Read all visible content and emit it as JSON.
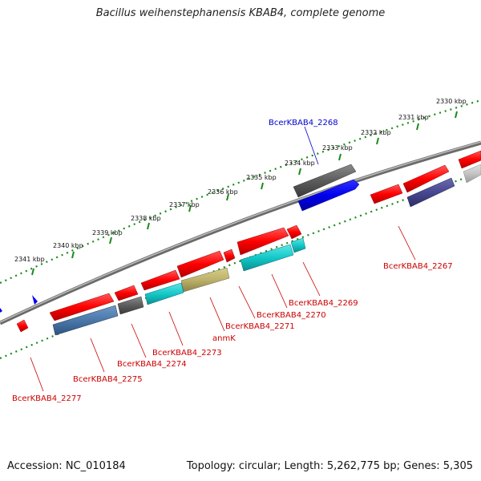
{
  "title": "Bacillus weihenstephanensis KBAB4, complete genome",
  "footer": {
    "accession": "Accession: NC_010184",
    "topology": "Topology: circular; Length: 5,262,775 bp; Genes: 5,305"
  },
  "colors": {
    "genome_line": "#7f7f7f",
    "dotted_scale": "#1a8a1a",
    "label_red": "#cc0000",
    "label_blue": "#0000cc"
  },
  "scale_ticks": [
    {
      "label": "2341 kbp"
    },
    {
      "label": "2340 kbp"
    },
    {
      "label": "2339 kbp"
    },
    {
      "label": "2338 kbp"
    },
    {
      "label": "2337 kbp"
    },
    {
      "label": "2336 kbp"
    },
    {
      "label": "2335 kbp"
    },
    {
      "label": "2334 kbp"
    },
    {
      "label": "2333 kbp"
    },
    {
      "label": "2332 kbp"
    },
    {
      "label": "2331 kbp"
    },
    {
      "label": "2330 kbp"
    }
  ],
  "genes": [
    {
      "name": "BcerKBAB4_2268",
      "color": "blue-label"
    },
    {
      "name": "BcerKBAB4_2267",
      "color": "red-label"
    },
    {
      "name": "BcerKBAB4_2269",
      "color": "red-label"
    },
    {
      "name": "BcerKBAB4_2270",
      "color": "red-label"
    },
    {
      "name": "BcerKBAB4_2271",
      "color": "red-label"
    },
    {
      "name": "anmK",
      "color": "red-label"
    },
    {
      "name": "BcerKBAB4_2273",
      "color": "red-label"
    },
    {
      "name": "BcerKBAB4_2274",
      "color": "red-label"
    },
    {
      "name": "BcerKBAB4_2275",
      "color": "red-label"
    },
    {
      "name": "BcerKBAB4_2277",
      "color": "red-label"
    }
  ]
}
